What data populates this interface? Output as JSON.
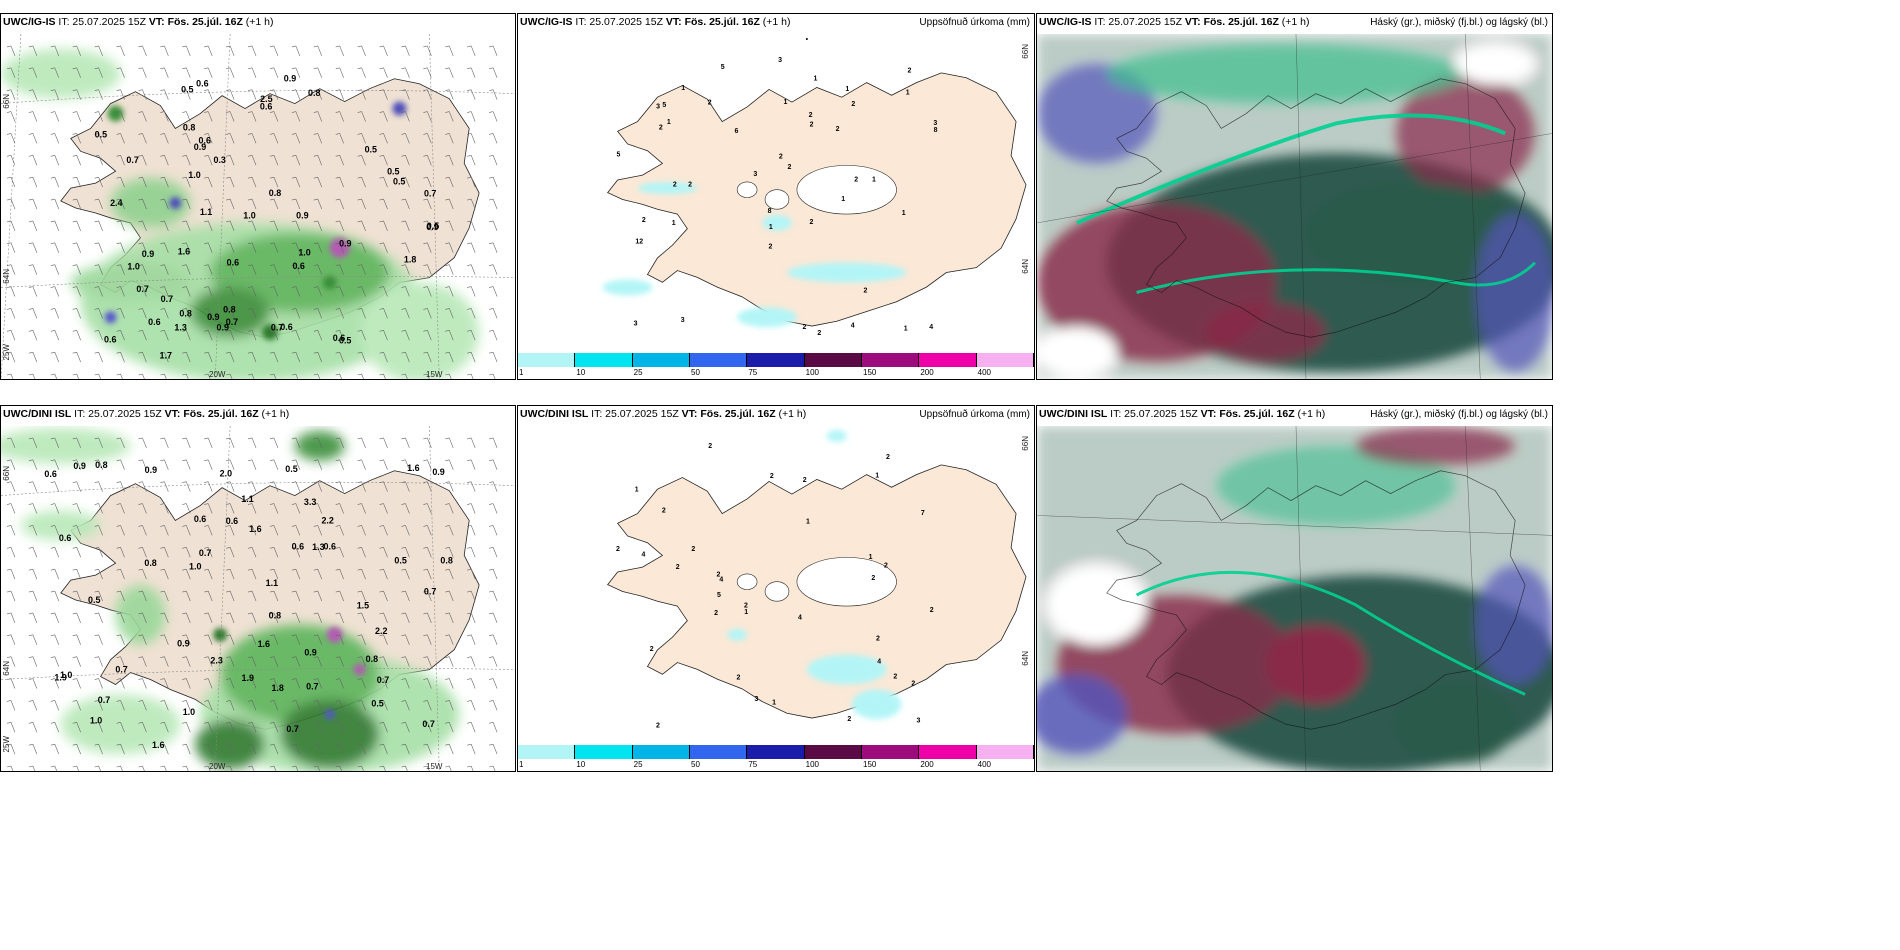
{
  "panels": {
    "top_left": {
      "model": "UWC/IG-IS",
      "it": "IT: 25.07.2025 15Z",
      "vt_label": "VT:",
      "vt": "Fös. 25.júl. 16Z",
      "lead": "(+1 h)"
    },
    "top_mid": {
      "model": "UWC/IG-IS",
      "it": "IT: 25.07.2025 15Z",
      "vt_label": "VT:",
      "vt": "Fös. 25.júl. 16Z",
      "lead": "(+1 h)",
      "right_title": "Uppsöfnuð úrkoma (mm)"
    },
    "top_right": {
      "model": "UWC/IG-IS",
      "it": "IT: 25.07.2025 15Z",
      "vt_label": "VT:",
      "vt": "Fös. 25.júl. 16Z",
      "lead": "(+1 h)",
      "right_title": "Háský (gr.), miðský (fj.bl.) og lágský (bl.)"
    },
    "bot_left": {
      "model": "UWC/DINI ISL",
      "it": "IT: 25.07.2025 15Z",
      "vt_label": "VT:",
      "vt": "Fös. 25.júl. 16Z",
      "lead": "(+1 h)"
    },
    "bot_mid": {
      "model": "UWC/DINI ISL",
      "it": "IT: 25.07.2025 15Z",
      "vt_label": "VT:",
      "vt": "Fös. 25.júl. 16Z",
      "lead": "(+1 h)",
      "right_title": "Uppsöfnuð úrkoma (mm)"
    },
    "bot_right": {
      "model": "UWC/DINI ISL",
      "it": "IT: 25.07.2025 15Z",
      "vt_label": "VT:",
      "vt": "Fös. 25.júl. 16Z",
      "lead": "(+1 h)",
      "right_title": "Háský (gr.), miðský (fj.bl.) og lágský (bl.)"
    }
  },
  "axes": {
    "lat66": "66N",
    "lat64": "64N",
    "lon25": "25W",
    "lon20": "20W",
    "lon15": "15W"
  },
  "colorbar": {
    "labels": [
      "1",
      "10",
      "25",
      "50",
      "75",
      "100",
      "150",
      "200",
      "400"
    ],
    "colors": [
      "#b3f5f7",
      "#00e5f0",
      "#00b4e6",
      "#3366ee",
      "#1c1caa",
      "#5a0a45",
      "#9c0c7d",
      "#ee00a8",
      "#f5b0f0"
    ]
  },
  "top_left_values": [
    "0.8",
    "0.6",
    "0.9",
    "0.6",
    "1.0",
    "0.9",
    "0.3",
    "2.5",
    "2.4",
    "0.5",
    "0.7",
    "0.5",
    "0.9",
    "1.6",
    "0.9",
    "0.6",
    "1.0",
    "0.8",
    "1.8",
    "0.7",
    "0.6",
    "0.9",
    "1.1",
    "0.5",
    "0.7",
    "0.5",
    "0.8",
    "0.6",
    "0.5",
    "0.8",
    "1.0",
    "0.9",
    "0.7",
    "0.6",
    "1.0",
    "0.5",
    "0.9",
    "0.7",
    "0.6",
    "1.3",
    "1.7",
    "0.6",
    "0.8",
    "0.9",
    "0.5",
    "0.7",
    "0.6"
  ],
  "bot_left_values": [
    "0.6",
    "0.7",
    "0.9",
    "2.0",
    "1.1",
    "0.9",
    "0.7",
    "0.5",
    "2.2",
    "1.6",
    "2.3",
    "0.8",
    "1.6",
    "0.9",
    "1.6",
    "0.8",
    "2.2",
    "0.6",
    "0.7",
    "0.5",
    "0.7",
    "1.6",
    "1.9",
    "0.8",
    "0.7",
    "0.6",
    "0.5",
    "0.9",
    "1.0",
    "0.8",
    "1.8",
    "0.7",
    "1.0",
    "0.5",
    "0.6",
    "0.7",
    "1.1",
    "1.0",
    "0.8",
    "1.5",
    "0.7",
    "1.3",
    "1.0",
    "0.6",
    "0.9",
    "3.3",
    "1.9",
    "0.6"
  ],
  "top_mid_values": [
    "2",
    "2",
    "2",
    "1",
    "1",
    "2",
    "3",
    "2",
    "1",
    "4",
    "8",
    "12",
    "5",
    "2",
    "1",
    "2",
    "1",
    "2",
    "1",
    "4",
    "5",
    "5",
    "1",
    "3",
    "2",
    "2",
    "2",
    "3",
    "6",
    "2",
    "3",
    "2",
    "1",
    "2",
    "2",
    "3",
    "8",
    "1",
    "2",
    "1",
    "2",
    "1",
    "1",
    "2",
    "3"
  ],
  "bot_mid_values": [
    "2",
    "2",
    "2",
    "2",
    "2",
    "2",
    "2",
    "2",
    "2",
    "4",
    "2",
    "2",
    "2",
    "4",
    "2",
    "2",
    "1",
    "2",
    "2",
    "2",
    "2",
    "2",
    "1",
    "1",
    "4",
    "2",
    "7",
    "3",
    "3",
    "1",
    "1",
    "2",
    "5",
    "4",
    "1"
  ]
}
